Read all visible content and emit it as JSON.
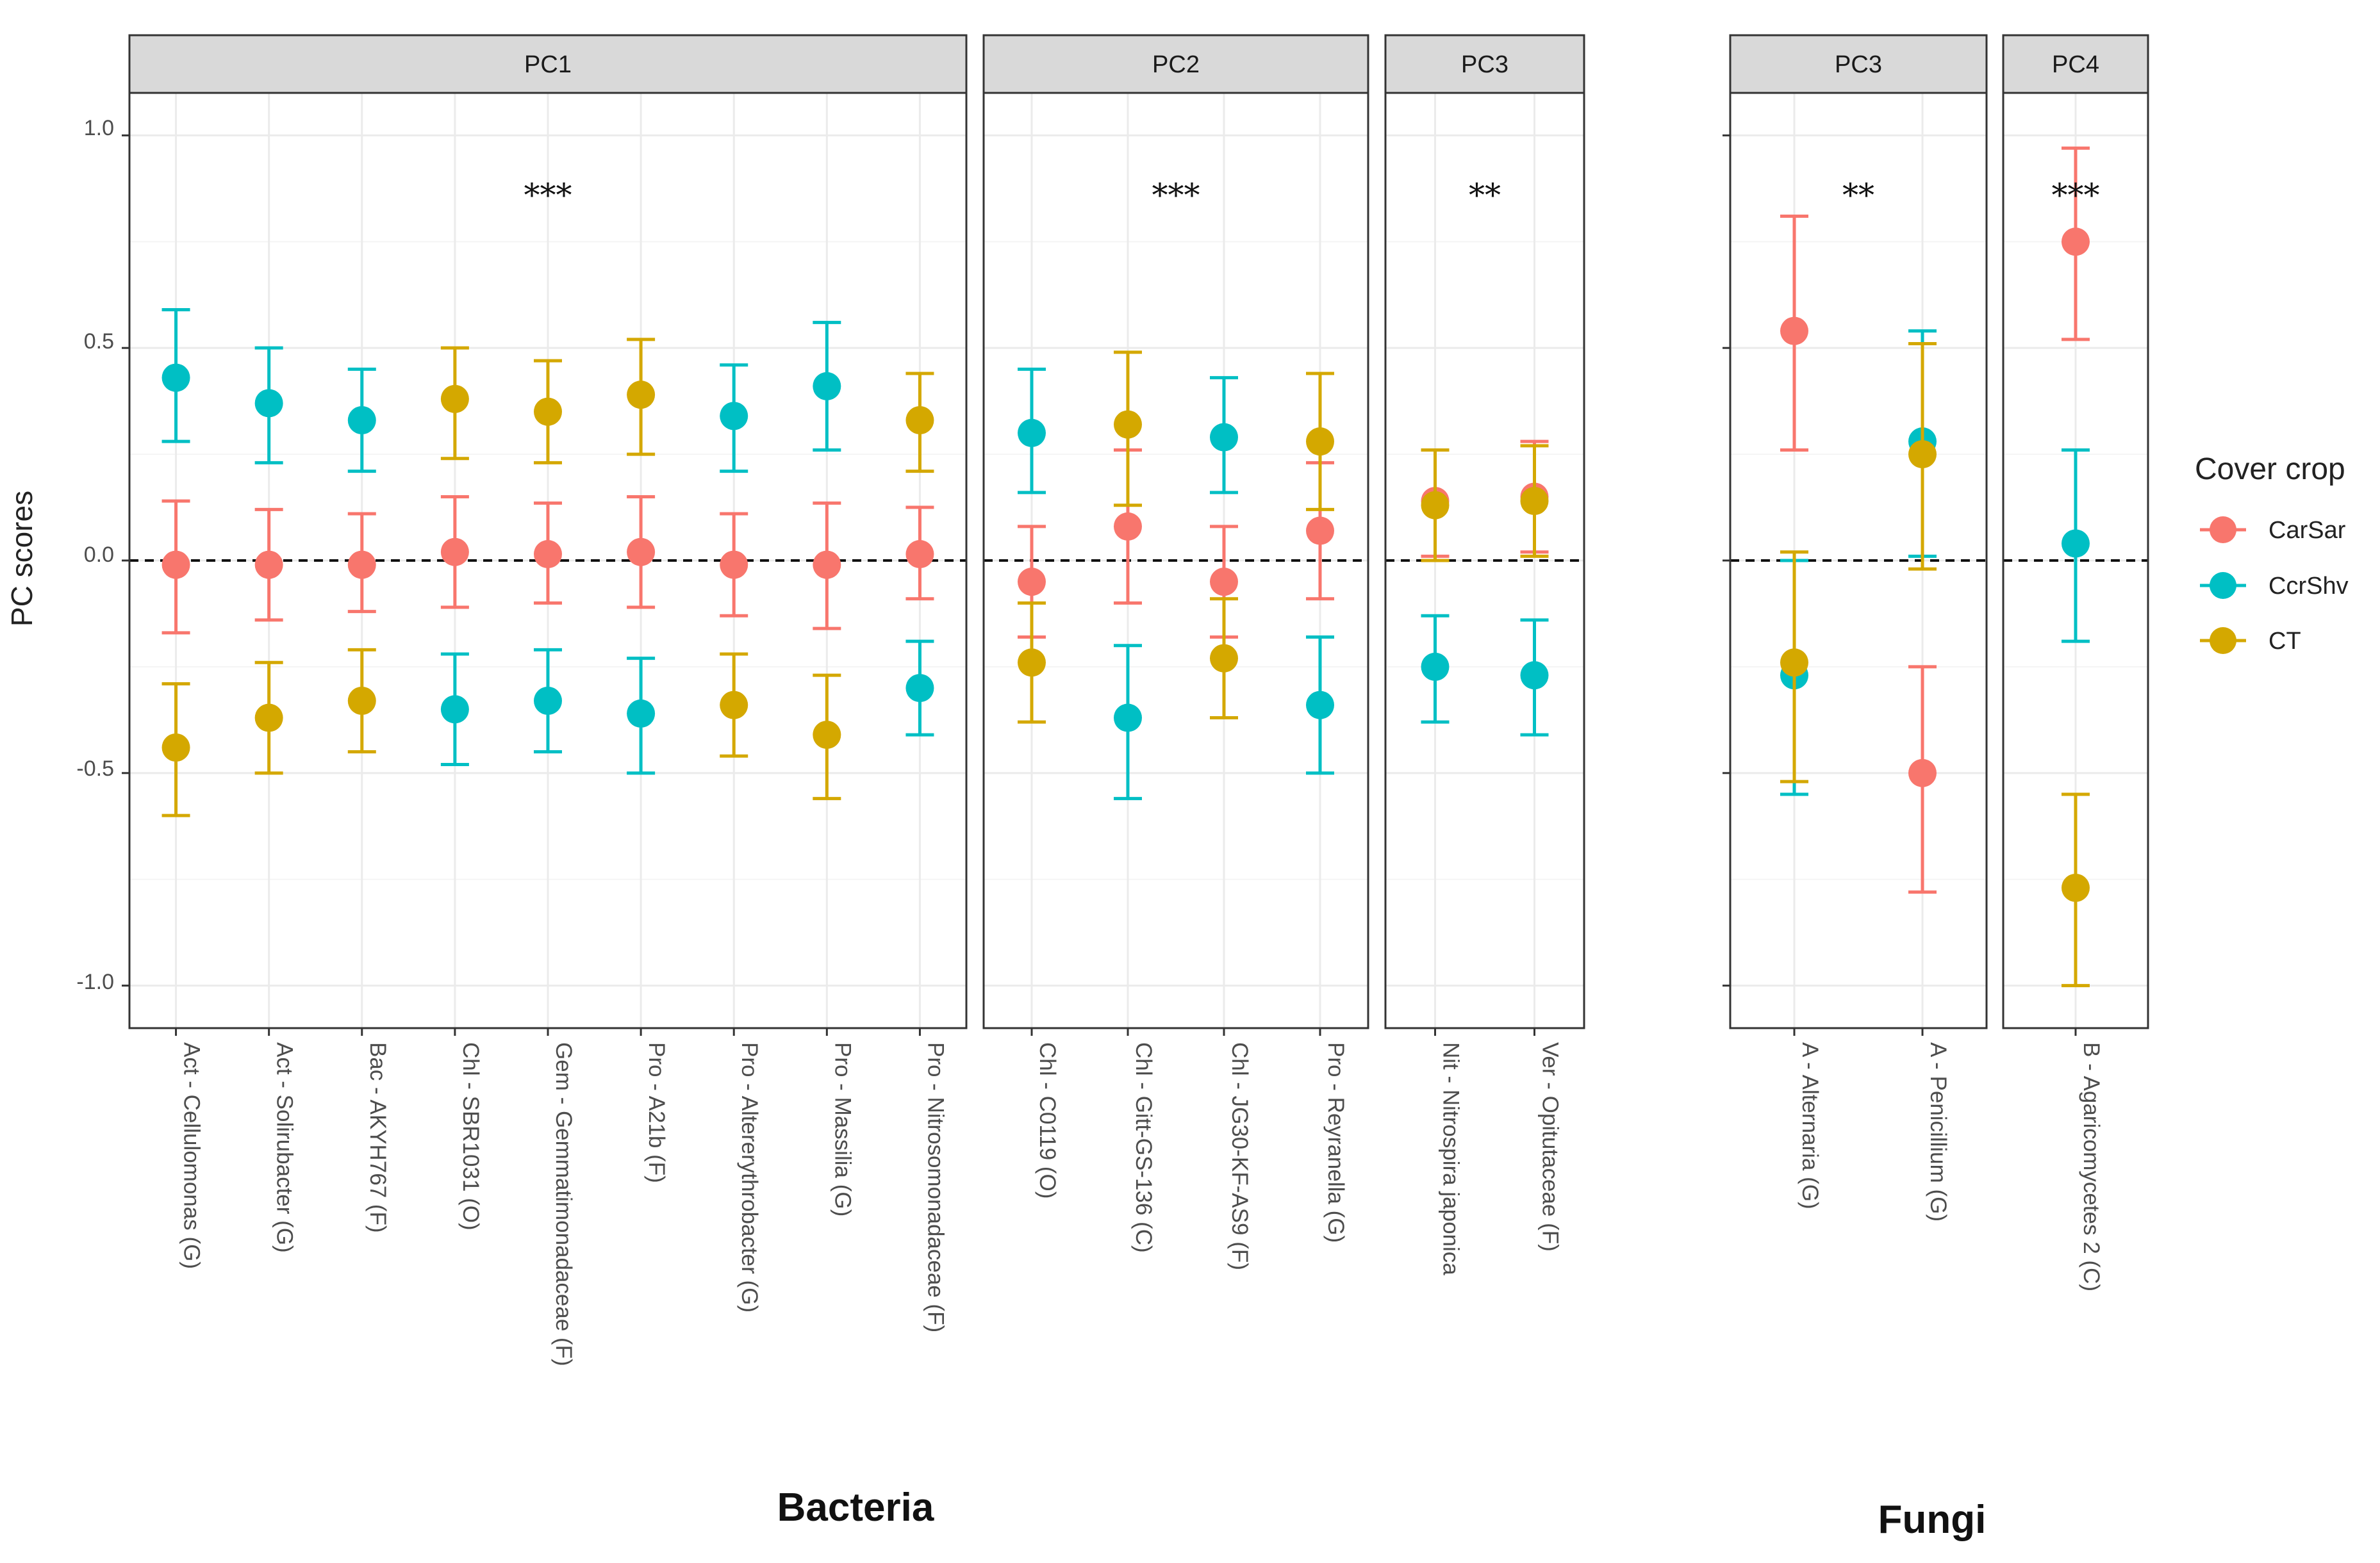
{
  "colors": {
    "CarSar": "#F8766D",
    "CcrShv": "#00BFC4",
    "CT": "#D4A800",
    "strip_bg": "#D9D9D9",
    "border": "#333333",
    "grid_major": "#EBEBEB",
    "grid_minor": "#F5F5F5",
    "text": "#222222",
    "axis_text": "#4D4D4D"
  },
  "chart_data": {
    "type": "scatter",
    "subtype": "point-range (mean ± error bars) faceted by principal component",
    "ylabel": "PC scores",
    "ylim": [
      -1.1,
      1.1
    ],
    "y_ticks": [
      1.0,
      0.5,
      0.0,
      -0.5,
      -1.0
    ],
    "y_tick_labels": [
      "1.0",
      "0.5",
      "0.0",
      "-0.5",
      "-1.0"
    ],
    "reference_line": 0,
    "grid": true,
    "legend": {
      "title": "Cover crop",
      "position": "right",
      "entries": [
        "CarSar",
        "CcrShv",
        "CT"
      ]
    },
    "groups": [
      {
        "label": "Bacteria",
        "panels": [
          {
            "strip": "PC1",
            "significance": "***",
            "categories": [
              "Act - Cellulomonas (G)",
              "Act - Solirubacter (G)",
              "Bac - AKYH767 (F)",
              "Chl - SBR1031 (O)",
              "Gem - Gemmatimonadaceae (F)",
              "Pro - A21b (F)",
              "Pro - Altererythrobacter (G)",
              "Pro - Massilia (G)",
              "Pro - Nitrosomonadaceae (F)"
            ],
            "series": [
              {
                "name": "CarSar",
                "values": [
                  -0.01,
                  -0.01,
                  -0.01,
                  0.02,
                  0.015,
                  0.02,
                  -0.01,
                  -0.01,
                  0.015
                ],
                "lower": [
                  -0.17,
                  -0.14,
                  -0.12,
                  -0.11,
                  -0.1,
                  -0.11,
                  -0.13,
                  -0.16,
                  -0.09
                ],
                "upper": [
                  0.14,
                  0.12,
                  0.11,
                  0.15,
                  0.135,
                  0.15,
                  0.11,
                  0.135,
                  0.125
                ]
              },
              {
                "name": "CcrShv",
                "values": [
                  0.43,
                  0.37,
                  0.33,
                  -0.35,
                  -0.33,
                  -0.36,
                  0.34,
                  0.41,
                  -0.3
                ],
                "lower": [
                  0.28,
                  0.23,
                  0.21,
                  -0.48,
                  -0.45,
                  -0.5,
                  0.21,
                  0.26,
                  -0.41
                ],
                "upper": [
                  0.59,
                  0.5,
                  0.45,
                  -0.22,
                  -0.21,
                  -0.23,
                  0.46,
                  0.56,
                  -0.19
                ]
              },
              {
                "name": "CT",
                "values": [
                  -0.44,
                  -0.37,
                  -0.33,
                  0.38,
                  0.35,
                  0.39,
                  -0.34,
                  -0.41,
                  0.33
                ],
                "lower": [
                  -0.6,
                  -0.5,
                  -0.45,
                  0.24,
                  0.23,
                  0.25,
                  -0.46,
                  -0.56,
                  0.21
                ],
                "upper": [
                  -0.29,
                  -0.24,
                  -0.21,
                  0.5,
                  0.47,
                  0.52,
                  -0.22,
                  -0.27,
                  0.44
                ]
              }
            ]
          },
          {
            "strip": "PC2",
            "significance": "***",
            "categories": [
              "Chl - C0119 (O)",
              "Chl - Gitt-GS-136 (C)",
              "Chl - JG30-KF-AS9 (F)",
              "Pro - Reyranella (G)"
            ],
            "series": [
              {
                "name": "CarSar",
                "values": [
                  -0.05,
                  0.08,
                  -0.05,
                  0.07
                ],
                "lower": [
                  -0.18,
                  -0.1,
                  -0.18,
                  -0.09
                ],
                "upper": [
                  0.08,
                  0.26,
                  0.08,
                  0.23
                ]
              },
              {
                "name": "CcrShv",
                "values": [
                  0.3,
                  -0.37,
                  0.29,
                  -0.34
                ],
                "lower": [
                  0.16,
                  -0.56,
                  0.16,
                  -0.5
                ],
                "upper": [
                  0.45,
                  -0.2,
                  0.43,
                  -0.18
                ]
              },
              {
                "name": "CT",
                "values": [
                  -0.24,
                  0.32,
                  -0.23,
                  0.28
                ],
                "lower": [
                  -0.38,
                  0.13,
                  -0.37,
                  0.12
                ],
                "upper": [
                  -0.1,
                  0.49,
                  -0.09,
                  0.44
                ]
              }
            ]
          },
          {
            "strip": "PC3",
            "significance": "**",
            "categories": [
              "Nit - Nitrospira japonica",
              "Ver - Opitutaceae (F)"
            ],
            "series": [
              {
                "name": "CarSar",
                "values": [
                  0.14,
                  0.15
                ],
                "lower": [
                  0.01,
                  0.02
                ],
                "upper": [
                  0.26,
                  0.28
                ]
              },
              {
                "name": "CcrShv",
                "values": [
                  -0.25,
                  -0.27
                ],
                "lower": [
                  -0.38,
                  -0.41
                ],
                "upper": [
                  -0.13,
                  -0.14
                ]
              },
              {
                "name": "CT",
                "values": [
                  0.13,
                  0.14
                ],
                "lower": [
                  0.0,
                  0.01
                ],
                "upper": [
                  0.26,
                  0.27
                ]
              }
            ]
          }
        ]
      },
      {
        "label": "Fungi",
        "panels": [
          {
            "strip": "PC3",
            "significance": "**",
            "categories": [
              "A - Alternaria (G)",
              "A - Penicillium (G)"
            ],
            "series": [
              {
                "name": "CarSar",
                "values": [
                  0.54,
                  -0.5
                ],
                "lower": [
                  0.26,
                  -0.78
                ],
                "upper": [
                  0.81,
                  -0.25
                ]
              },
              {
                "name": "CcrShv",
                "values": [
                  -0.27,
                  0.28
                ],
                "lower": [
                  -0.55,
                  0.01
                ],
                "upper": [
                  0.0,
                  0.54
                ]
              },
              {
                "name": "CT",
                "values": [
                  -0.24,
                  0.25
                ],
                "lower": [
                  -0.52,
                  -0.02
                ],
                "upper": [
                  0.02,
                  0.51
                ]
              }
            ]
          },
          {
            "strip": "PC4",
            "significance": "***",
            "categories": [
              "B - Agaricomycetes 2 (C)"
            ],
            "series": [
              {
                "name": "CarSar",
                "values": [
                  0.75
                ],
                "lower": [
                  0.52
                ],
                "upper": [
                  0.97
                ]
              },
              {
                "name": "CcrShv",
                "values": [
                  0.04
                ],
                "lower": [
                  -0.19
                ],
                "upper": [
                  0.26
                ]
              },
              {
                "name": "CT",
                "values": [
                  -0.77
                ],
                "lower": [
                  -1.0
                ],
                "upper": [
                  -0.55
                ]
              }
            ]
          }
        ]
      }
    ]
  }
}
